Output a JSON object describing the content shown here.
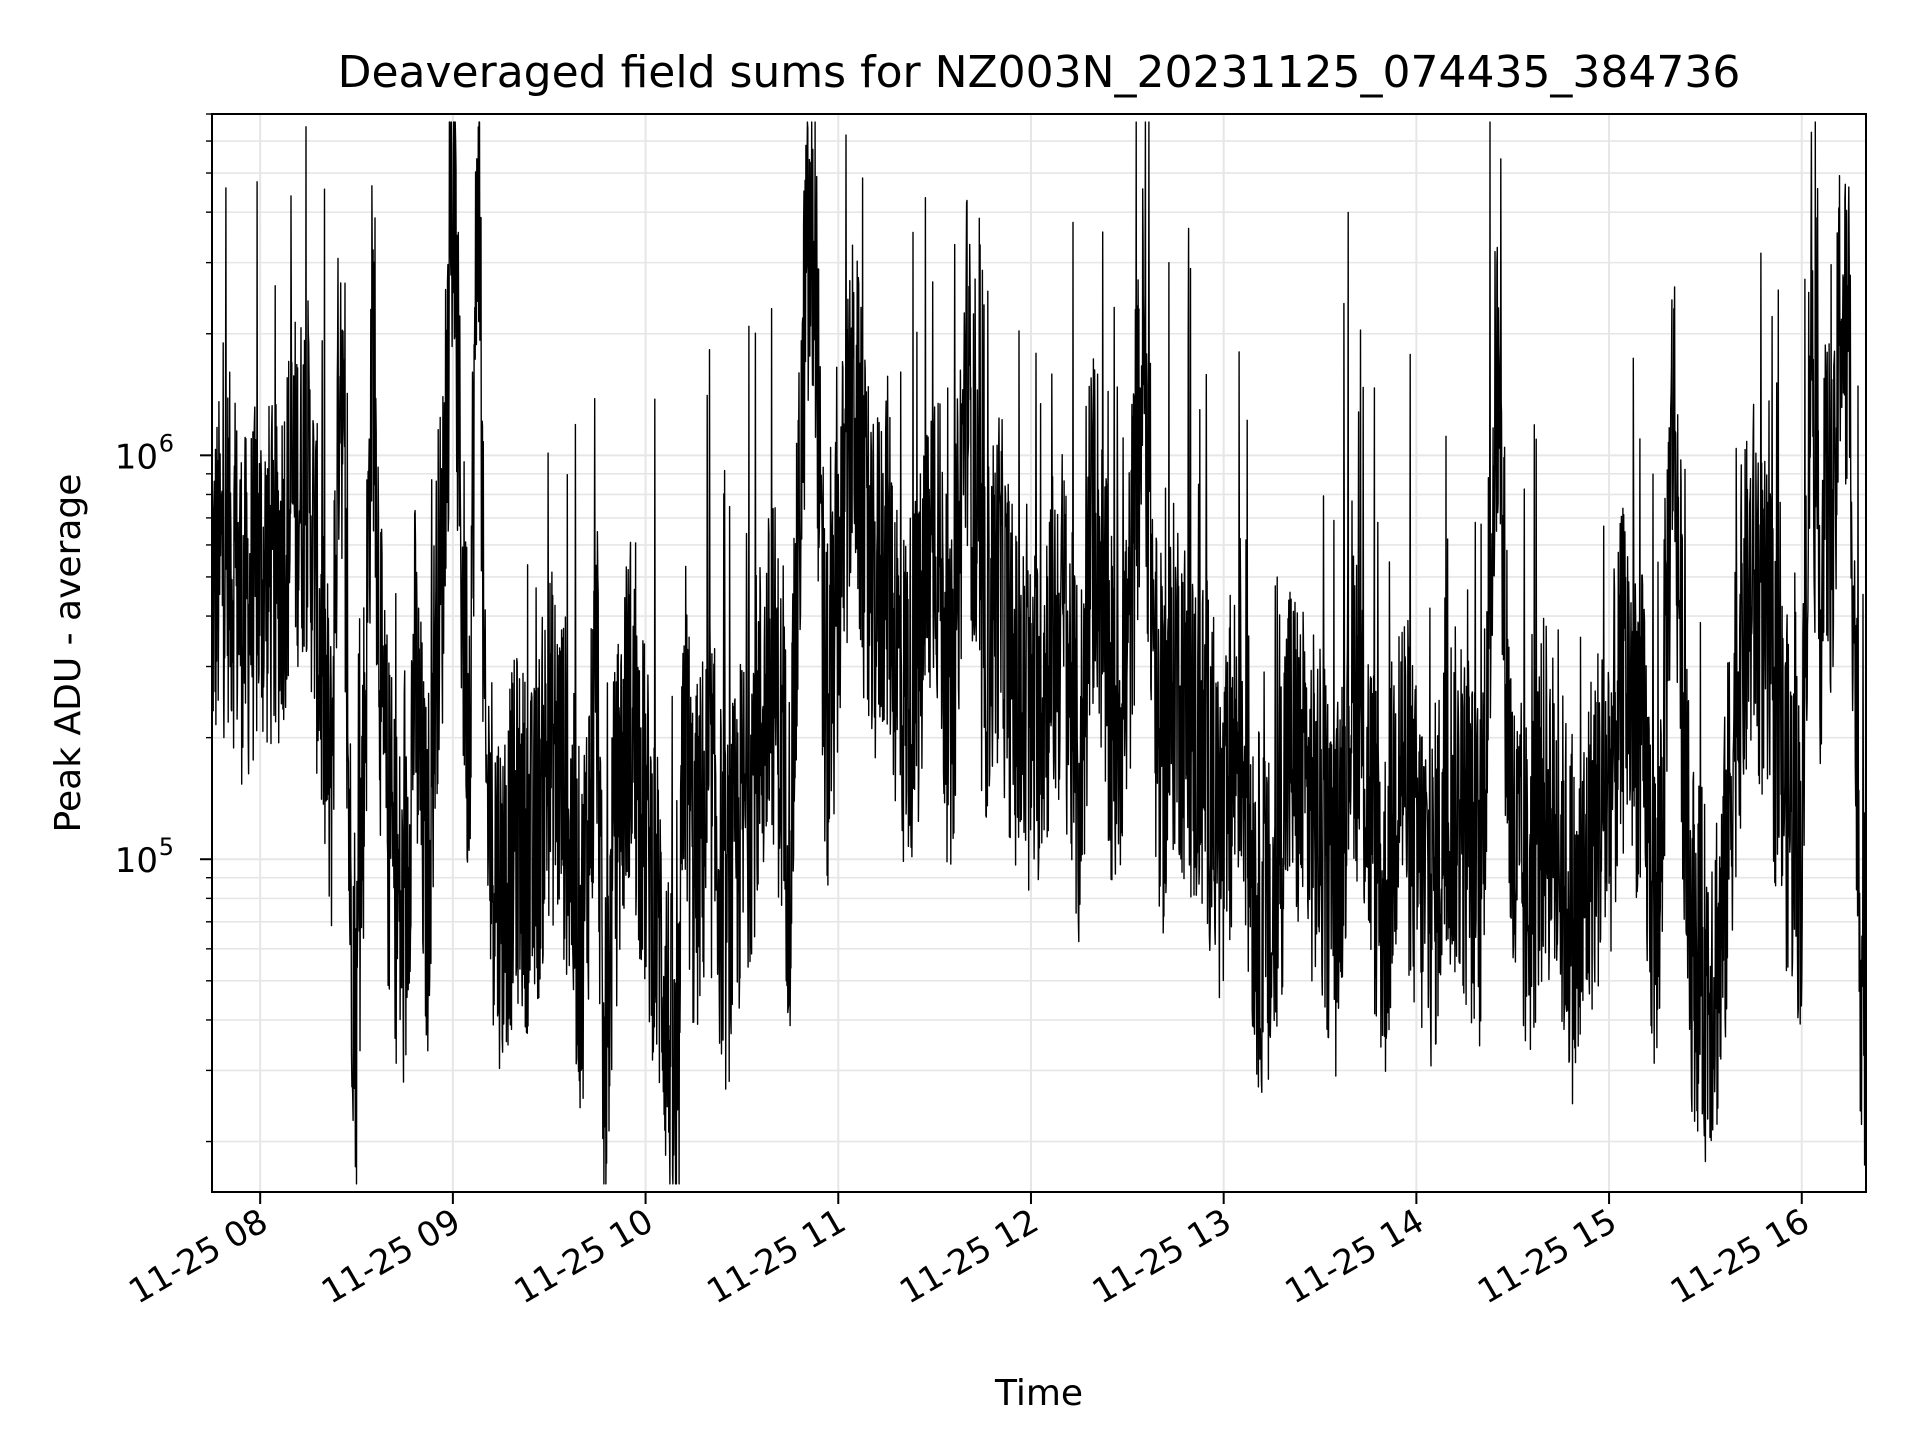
{
  "chart_data": {
    "type": "line",
    "title": "Deaveraged field sums for NZ003N_20231125_074435_384736",
    "xlabel": "Time",
    "ylabel": "Peak ADU - average",
    "x_ticks": [
      "11-25 08",
      "11-25 09",
      "11-25 10",
      "11-25 11",
      "11-25 12",
      "11-25 13",
      "11-25 14",
      "11-25 15",
      "11-25 16"
    ],
    "y_ticks": [
      {
        "base": "10",
        "exp": "5",
        "value": 100000
      },
      {
        "base": "10",
        "exp": "6",
        "value": 1000000
      }
    ],
    "xlim": [
      "2023-11-25 07:45",
      "2023-11-25 16:20"
    ],
    "ylim": [
      15000,
      7000000
    ],
    "yscale": "log",
    "grid": true,
    "line_color": "#000000",
    "grid_color": "#e6e6e6",
    "series": [
      {
        "x": [
          "07:45",
          "07:50",
          "07:55",
          "08:00",
          "08:05",
          "08:10",
          "08:15",
          "08:18",
          "08:20",
          "08:22",
          "08:25",
          "08:28",
          "08:30",
          "08:33",
          "08:35",
          "08:38",
          "08:40",
          "08:45",
          "08:48",
          "08:50",
          "08:52",
          "08:55",
          "08:57",
          "09:00",
          "09:03",
          "09:05",
          "09:08",
          "09:10",
          "09:15",
          "09:20",
          "09:25",
          "09:30",
          "09:35",
          "09:40",
          "09:45",
          "09:47",
          "09:50",
          "09:55",
          "10:00",
          "10:05",
          "10:08",
          "10:10",
          "10:12",
          "10:15",
          "10:20",
          "10:25",
          "10:30",
          "10:35",
          "10:40",
          "10:45",
          "10:50",
          "10:53",
          "10:55",
          "10:57",
          "11:00",
          "11:05",
          "11:10",
          "11:15",
          "11:20",
          "11:25",
          "11:30",
          "11:35",
          "11:40",
          "11:45",
          "11:50",
          "11:55",
          "12:00",
          "12:05",
          "12:10",
          "12:15",
          "12:20",
          "12:25",
          "12:30",
          "12:35",
          "12:40",
          "12:45",
          "12:50",
          "12:55",
          "13:00",
          "13:05",
          "13:10",
          "13:15",
          "13:20",
          "13:25",
          "13:30",
          "13:35",
          "13:40",
          "13:45",
          "13:50",
          "13:55",
          "14:00",
          "14:05",
          "14:10",
          "14:15",
          "14:20",
          "14:25",
          "14:30",
          "14:35",
          "14:40",
          "14:45",
          "14:50",
          "14:55",
          "15:00",
          "15:05",
          "15:10",
          "15:15",
          "15:20",
          "15:25",
          "15:30",
          "15:35",
          "15:40",
          "15:45",
          "15:50",
          "15:55",
          "16:00",
          "16:03",
          "16:05",
          "16:08",
          "16:10",
          "16:12",
          "16:15",
          "16:18",
          "16:20"
        ],
        "values": [
          450000,
          600000,
          400000,
          520000,
          480000,
          800000,
          900000,
          400000,
          250000,
          140000,
          2400000,
          90000,
          40000,
          300000,
          2200000,
          200000,
          120000,
          60000,
          300000,
          150000,
          80000,
          400000,
          600000,
          4800000,
          450000,
          200000,
          6200000,
          150000,
          80000,
          120000,
          95000,
          200000,
          150000,
          60000,
          300000,
          22000,
          100000,
          250000,
          120000,
          60000,
          30000,
          20000,
          250000,
          90000,
          150000,
          70000,
          120000,
          200000,
          300000,
          100000,
          2800000,
          3100000,
          300000,
          200000,
          500000,
          1400000,
          400000,
          600000,
          250000,
          300000,
          800000,
          200000,
          1800000,
          300000,
          500000,
          250000,
          200000,
          300000,
          400000,
          150000,
          800000,
          200000,
          300000,
          1900000,
          150000,
          300000,
          200000,
          180000,
          100000,
          250000,
          80000,
          60000,
          200000,
          150000,
          120000,
          80000,
          300000,
          150000,
          70000,
          200000,
          100000,
          80000,
          150000,
          120000,
          90000,
          1600000,
          100000,
          80000,
          150000,
          100000,
          60000,
          120000,
          150000,
          300000,
          200000,
          60000,
          1500000,
          70000,
          50000,
          60000,
          300000,
          500000,
          300000,
          150000,
          100000,
          2800000,
          400000,
          800000,
          600000,
          2600000,
          1500000,
          70000,
          40000
        ]
      }
    ]
  }
}
